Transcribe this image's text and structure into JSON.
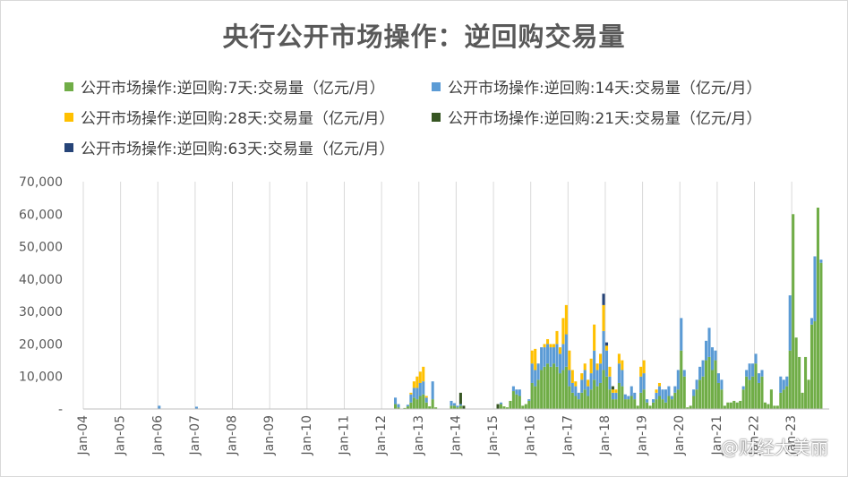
{
  "chart_data": {
    "type": "bar",
    "stacked": true,
    "title": "央行公开市场操作：逆回购交易量",
    "xlabel": "",
    "ylabel": "",
    "ylim": [
      0,
      70000
    ],
    "yticks": [
      0,
      10000,
      20000,
      30000,
      40000,
      50000,
      60000,
      70000
    ],
    "ytick_labels": [
      "-",
      "10,000",
      "20,000",
      "30,000",
      "40,000",
      "50,000",
      "60,000",
      "70,000"
    ],
    "xtick_labels": [
      "Jan-04",
      "Jan-05",
      "Jan-06",
      "Jan-07",
      "Jan-08",
      "Jan-09",
      "Jan-10",
      "Jan-11",
      "Jan-12",
      "Jan-13",
      "Jan-14",
      "Jan-15",
      "Jan-16",
      "Jan-17",
      "Jan-18",
      "Jan-19",
      "Jan-20",
      "Jan-21",
      "Jan-22",
      "Jan-23"
    ],
    "x_start": "2004-01",
    "grid": "vertical",
    "legend_position": "top",
    "series": [
      {
        "name": "公开市场操作:逆回购:7天:交易量（亿元/月）",
        "color": "#70ad47",
        "key": "d7"
      },
      {
        "name": "公开市场操作:逆回购:14天:交易量（亿元/月）",
        "color": "#5b9bd5",
        "key": "d14"
      },
      {
        "name": "公开市场操作:逆回购:28天:交易量（亿元/月）",
        "color": "#ffc000",
        "key": "d28"
      },
      {
        "name": "公开市场操作:逆回购:21天:交易量（亿元/月）",
        "color": "#375623",
        "key": "d21"
      },
      {
        "name": "公开市场操作:逆回购:63天:交易量（亿元/月）",
        "color": "#264478",
        "key": "d63"
      }
    ],
    "data": [
      {
        "x": "2006-01",
        "d7": 0,
        "d14": 1000,
        "d28": 0,
        "d21": 0,
        "d63": 0
      },
      {
        "x": "2007-01",
        "d7": 0,
        "d14": 700,
        "d28": 0,
        "d21": 0,
        "d63": 0
      },
      {
        "x": "2012-05",
        "d7": 1500,
        "d14": 2000,
        "d28": 0,
        "d21": 0,
        "d63": 0
      },
      {
        "x": "2012-06",
        "d7": 500,
        "d14": 1000,
        "d28": 0,
        "d21": 0,
        "d63": 0
      },
      {
        "x": "2012-07",
        "d7": 0,
        "d14": 0,
        "d28": 0,
        "d21": 0,
        "d63": 0
      },
      {
        "x": "2012-08",
        "d7": 300,
        "d14": 0,
        "d28": 0,
        "d21": 0,
        "d63": 0
      },
      {
        "x": "2012-09",
        "d7": 800,
        "d14": 500,
        "d28": 0,
        "d21": 0,
        "d63": 0
      },
      {
        "x": "2012-10",
        "d7": 2000,
        "d14": 2500,
        "d28": 500,
        "d21": 0,
        "d63": 0
      },
      {
        "x": "2012-11",
        "d7": 3500,
        "d14": 3000,
        "d28": 2000,
        "d21": 0,
        "d63": 0
      },
      {
        "x": "2012-12",
        "d7": 3000,
        "d14": 3500,
        "d28": 3500,
        "d21": 0,
        "d63": 0
      },
      {
        "x": "2013-01",
        "d7": 4000,
        "d14": 4000,
        "d28": 3500,
        "d21": 0,
        "d63": 0
      },
      {
        "x": "2013-02",
        "d7": 4500,
        "d14": 4000,
        "d28": 4500,
        "d21": 0,
        "d63": 0
      },
      {
        "x": "2013-03",
        "d7": 2000,
        "d14": 1500,
        "d28": 500,
        "d21": 0,
        "d63": 0
      },
      {
        "x": "2013-04",
        "d7": 800,
        "d14": 0,
        "d28": 0,
        "d21": 0,
        "d63": 0
      },
      {
        "x": "2013-05",
        "d7": 3000,
        "d14": 5500,
        "d28": 0,
        "d21": 0,
        "d63": 0
      },
      {
        "x": "2013-06",
        "d7": 500,
        "d14": 0,
        "d28": 0,
        "d21": 0,
        "d63": 0
      },
      {
        "x": "2013-11",
        "d7": 1000,
        "d14": 1500,
        "d28": 0,
        "d21": 0,
        "d63": 0
      },
      {
        "x": "2013-12",
        "d7": 1000,
        "d14": 800,
        "d28": 0,
        "d21": 0,
        "d63": 0
      },
      {
        "x": "2014-01",
        "d7": 500,
        "d14": 500,
        "d28": 0,
        "d21": 0,
        "d63": 0
      },
      {
        "x": "2014-02",
        "d7": 1000,
        "d14": 500,
        "d28": 0,
        "d21": 3500,
        "d63": 0
      },
      {
        "x": "2014-03",
        "d7": 0,
        "d14": 0,
        "d28": 0,
        "d21": 1000,
        "d63": 0
      },
      {
        "x": "2015-02",
        "d7": 0,
        "d14": 0,
        "d28": 0,
        "d21": 1500,
        "d63": 0
      },
      {
        "x": "2015-03",
        "d7": 1500,
        "d14": 500,
        "d28": 0,
        "d21": 0,
        "d63": 0
      },
      {
        "x": "2015-04",
        "d7": 800,
        "d14": 0,
        "d28": 0,
        "d21": 0,
        "d63": 0
      },
      {
        "x": "2015-05",
        "d7": 500,
        "d14": 0,
        "d28": 0,
        "d21": 0,
        "d63": 0
      },
      {
        "x": "2015-06",
        "d7": 2500,
        "d14": 0,
        "d28": 0,
        "d21": 0,
        "d63": 0
      },
      {
        "x": "2015-07",
        "d7": 5500,
        "d14": 1500,
        "d28": 0,
        "d21": 0,
        "d63": 0
      },
      {
        "x": "2015-08",
        "d7": 4500,
        "d14": 1500,
        "d28": 0,
        "d21": 0,
        "d63": 0
      },
      {
        "x": "2015-09",
        "d7": 4000,
        "d14": 2000,
        "d28": 0,
        "d21": 0,
        "d63": 0
      },
      {
        "x": "2015-10",
        "d7": 1000,
        "d14": 0,
        "d28": 0,
        "d21": 0,
        "d63": 0
      },
      {
        "x": "2015-11",
        "d7": 1500,
        "d14": 0,
        "d28": 0,
        "d21": 0,
        "d63": 0
      },
      {
        "x": "2015-12",
        "d7": 2500,
        "d14": 500,
        "d28": 0,
        "d21": 0,
        "d63": 0
      },
      {
        "x": "2016-01",
        "d7": 8000,
        "d14": 6000,
        "d28": 4000,
        "d21": 0,
        "d63": 0
      },
      {
        "x": "2016-02",
        "d7": 7000,
        "d14": 5000,
        "d28": 6500,
        "d21": 0,
        "d63": 0
      },
      {
        "x": "2016-03",
        "d7": 9000,
        "d14": 5000,
        "d28": 0,
        "d21": 0,
        "d63": 0
      },
      {
        "x": "2016-04",
        "d7": 12000,
        "d14": 7000,
        "d28": 0,
        "d21": 0,
        "d63": 0
      },
      {
        "x": "2016-05",
        "d7": 13000,
        "d14": 6000,
        "d28": 1000,
        "d21": 0,
        "d63": 0
      },
      {
        "x": "2016-06",
        "d7": 14000,
        "d14": 6000,
        "d28": 1500,
        "d21": 0,
        "d63": 0
      },
      {
        "x": "2016-07",
        "d7": 13000,
        "d14": 6000,
        "d28": 1000,
        "d21": 0,
        "d63": 0
      },
      {
        "x": "2016-08",
        "d7": 14000,
        "d14": 5000,
        "d28": 1000,
        "d21": 0,
        "d63": 0
      },
      {
        "x": "2016-09",
        "d7": 13000,
        "d14": 7000,
        "d28": 4000,
        "d21": 0,
        "d63": 0
      },
      {
        "x": "2016-10",
        "d7": 11000,
        "d14": 6000,
        "d28": 2000,
        "d21": 0,
        "d63": 0
      },
      {
        "x": "2016-11",
        "d7": 12000,
        "d14": 8000,
        "d28": 8000,
        "d21": 0,
        "d63": 0
      },
      {
        "x": "2016-12",
        "d7": 13000,
        "d14": 10000,
        "d28": 9000,
        "d21": 0,
        "d63": 0
      },
      {
        "x": "2017-01",
        "d7": 7000,
        "d14": 5000,
        "d28": 6000,
        "d21": 0,
        "d63": 0
      },
      {
        "x": "2017-02",
        "d7": 5000,
        "d14": 3000,
        "d28": 4000,
        "d21": 0,
        "d63": 0
      },
      {
        "x": "2017-03",
        "d7": 4000,
        "d14": 3000,
        "d28": 1500,
        "d21": 0,
        "d63": 0
      },
      {
        "x": "2017-04",
        "d7": 3000,
        "d14": 2000,
        "d28": 0,
        "d21": 0,
        "d63": 0
      },
      {
        "x": "2017-05",
        "d7": 5000,
        "d14": 4000,
        "d28": 2000,
        "d21": 0,
        "d63": 0
      },
      {
        "x": "2017-06",
        "d7": 6000,
        "d14": 6000,
        "d28": 2000,
        "d21": 0,
        "d63": 0
      },
      {
        "x": "2017-07",
        "d7": 4000,
        "d14": 3000,
        "d28": 2000,
        "d21": 0,
        "d63": 0
      },
      {
        "x": "2017-08",
        "d7": 6000,
        "d14": 5000,
        "d28": 4500,
        "d21": 0,
        "d63": 0
      },
      {
        "x": "2017-09",
        "d7": 9000,
        "d14": 9000,
        "d28": 8000,
        "d21": 0,
        "d63": 0
      },
      {
        "x": "2017-10",
        "d7": 7000,
        "d14": 5000,
        "d28": 2000,
        "d21": 0,
        "d63": 0
      },
      {
        "x": "2017-11",
        "d7": 8000,
        "d14": 6000,
        "d28": 3000,
        "d21": 0,
        "d63": 0
      },
      {
        "x": "2017-12",
        "d7": 12000,
        "d14": 12000,
        "d28": 8000,
        "d21": 0,
        "d63": 3500
      },
      {
        "x": "2018-01",
        "d7": 10000,
        "d14": 8000,
        "d28": 1500,
        "d21": 0,
        "d63": 1000
      },
      {
        "x": "2018-02",
        "d7": 6000,
        "d14": 4000,
        "d28": 3000,
        "d21": 0,
        "d63": 0
      },
      {
        "x": "2018-03",
        "d7": 3000,
        "d14": 2000,
        "d28": 1000,
        "d21": 1000,
        "d63": 0
      },
      {
        "x": "2018-04",
        "d7": 3000,
        "d14": 2000,
        "d28": 1000,
        "d21": 0,
        "d63": 0
      },
      {
        "x": "2018-05",
        "d7": 8000,
        "d14": 6000,
        "d28": 3000,
        "d21": 0,
        "d63": 0
      },
      {
        "x": "2018-06",
        "d7": 7000,
        "d14": 5000,
        "d28": 3000,
        "d21": 0,
        "d63": 0
      },
      {
        "x": "2018-07",
        "d7": 3000,
        "d14": 1500,
        "d28": 0,
        "d21": 0,
        "d63": 0
      },
      {
        "x": "2018-08",
        "d7": 3000,
        "d14": 1000,
        "d28": 0,
        "d21": 0,
        "d63": 0
      },
      {
        "x": "2018-09",
        "d7": 4000,
        "d14": 3000,
        "d28": 0,
        "d21": 0,
        "d63": 0
      },
      {
        "x": "2018-10",
        "d7": 3000,
        "d14": 2000,
        "d28": 0,
        "d21": 0,
        "d63": 0
      },
      {
        "x": "2018-11",
        "d7": 1000,
        "d14": 0,
        "d28": 0,
        "d21": 0,
        "d63": 0
      },
      {
        "x": "2018-12",
        "d7": 5000,
        "d14": 5000,
        "d28": 3000,
        "d21": 0,
        "d63": 0
      },
      {
        "x": "2019-01",
        "d7": 6000,
        "d14": 5000,
        "d28": 4000,
        "d21": 0,
        "d63": 0
      },
      {
        "x": "2019-02",
        "d7": 2000,
        "d14": 1000,
        "d28": 0,
        "d21": 0,
        "d63": 0
      },
      {
        "x": "2019-03",
        "d7": 1000,
        "d14": 0,
        "d28": 0,
        "d21": 0,
        "d63": 0
      },
      {
        "x": "2019-04",
        "d7": 2000,
        "d14": 1000,
        "d28": 0,
        "d21": 0,
        "d63": 0
      },
      {
        "x": "2019-05",
        "d7": 3000,
        "d14": 2000,
        "d28": 1000,
        "d21": 0,
        "d63": 0
      },
      {
        "x": "2019-06",
        "d7": 4000,
        "d14": 3000,
        "d28": 1000,
        "d21": 0,
        "d63": 0
      },
      {
        "x": "2019-07",
        "d7": 3000,
        "d14": 3000,
        "d28": 0,
        "d21": 0,
        "d63": 0
      },
      {
        "x": "2019-08",
        "d7": 2000,
        "d14": 4000,
        "d28": 0,
        "d21": 0,
        "d63": 0
      },
      {
        "x": "2019-09",
        "d7": 4000,
        "d14": 3000,
        "d28": 0,
        "d21": 0,
        "d63": 0
      },
      {
        "x": "2019-10",
        "d7": 3000,
        "d14": 1000,
        "d28": 0,
        "d21": 0,
        "d63": 0
      },
      {
        "x": "2019-11",
        "d7": 5000,
        "d14": 2000,
        "d28": 0,
        "d21": 0,
        "d63": 0
      },
      {
        "x": "2019-12",
        "d7": 6000,
        "d14": 6000,
        "d28": 0,
        "d21": 0,
        "d63": 0
      },
      {
        "x": "2020-01",
        "d7": 18000,
        "d14": 10000,
        "d28": 0,
        "d21": 0,
        "d63": 0
      },
      {
        "x": "2020-02",
        "d7": 10000,
        "d14": 2000,
        "d28": 0,
        "d21": 0,
        "d63": 0
      },
      {
        "x": "2020-03",
        "d7": 500,
        "d14": 0,
        "d28": 0,
        "d21": 0,
        "d63": 0
      },
      {
        "x": "2020-04",
        "d7": 1000,
        "d14": 0,
        "d28": 0,
        "d21": 0,
        "d63": 0
      },
      {
        "x": "2020-05",
        "d7": 4000,
        "d14": 2000,
        "d28": 0,
        "d21": 0,
        "d63": 0
      },
      {
        "x": "2020-06",
        "d7": 6000,
        "d14": 3000,
        "d28": 0,
        "d21": 0,
        "d63": 0
      },
      {
        "x": "2020-07",
        "d7": 9000,
        "d14": 4000,
        "d28": 0,
        "d21": 0,
        "d63": 0
      },
      {
        "x": "2020-08",
        "d7": 10000,
        "d14": 5000,
        "d28": 0,
        "d21": 0,
        "d63": 0
      },
      {
        "x": "2020-09",
        "d7": 15000,
        "d14": 6000,
        "d28": 0,
        "d21": 0,
        "d63": 0
      },
      {
        "x": "2020-10",
        "d7": 16000,
        "d14": 9000,
        "d28": 0,
        "d21": 0,
        "d63": 0
      },
      {
        "x": "2020-11",
        "d7": 12000,
        "d14": 7000,
        "d28": 0,
        "d21": 0,
        "d63": 0
      },
      {
        "x": "2020-12",
        "d7": 15000,
        "d14": 3000,
        "d28": 0,
        "d21": 0,
        "d63": 0
      },
      {
        "x": "2021-01",
        "d7": 8000,
        "d14": 3000,
        "d28": 0,
        "d21": 0,
        "d63": 0
      },
      {
        "x": "2021-02",
        "d7": 6000,
        "d14": 3000,
        "d28": 0,
        "d21": 0,
        "d63": 0
      },
      {
        "x": "2021-03",
        "d7": 1000,
        "d14": 0,
        "d28": 0,
        "d21": 0,
        "d63": 0
      },
      {
        "x": "2021-04",
        "d7": 2000,
        "d14": 0,
        "d28": 0,
        "d21": 0,
        "d63": 0
      },
      {
        "x": "2021-05",
        "d7": 2000,
        "d14": 0,
        "d28": 0,
        "d21": 0,
        "d63": 0
      },
      {
        "x": "2021-06",
        "d7": 2500,
        "d14": 0,
        "d28": 0,
        "d21": 0,
        "d63": 0
      },
      {
        "x": "2021-07",
        "d7": 2000,
        "d14": 0,
        "d28": 0,
        "d21": 0,
        "d63": 0
      },
      {
        "x": "2021-08",
        "d7": 2500,
        "d14": 0,
        "d28": 0,
        "d21": 0,
        "d63": 0
      },
      {
        "x": "2021-09",
        "d7": 6000,
        "d14": 1000,
        "d28": 0,
        "d21": 0,
        "d63": 0
      },
      {
        "x": "2021-10",
        "d7": 10000,
        "d14": 2000,
        "d28": 0,
        "d21": 0,
        "d63": 0
      },
      {
        "x": "2021-11",
        "d7": 9000,
        "d14": 5000,
        "d28": 0,
        "d21": 0,
        "d63": 0
      },
      {
        "x": "2021-12",
        "d7": 10000,
        "d14": 4000,
        "d28": 0,
        "d21": 0,
        "d63": 0
      },
      {
        "x": "2022-01",
        "d7": 14000,
        "d14": 3000,
        "d28": 0,
        "d21": 0,
        "d63": 0
      },
      {
        "x": "2022-02",
        "d7": 8000,
        "d14": 3000,
        "d28": 0,
        "d21": 0,
        "d63": 0
      },
      {
        "x": "2022-03",
        "d7": 10000,
        "d14": 2000,
        "d28": 0,
        "d21": 0,
        "d63": 0
      },
      {
        "x": "2022-04",
        "d7": 2000,
        "d14": 0,
        "d28": 0,
        "d21": 0,
        "d63": 0
      },
      {
        "x": "2022-05",
        "d7": 1500,
        "d14": 0,
        "d28": 0,
        "d21": 0,
        "d63": 0
      },
      {
        "x": "2022-06",
        "d7": 6000,
        "d14": 0,
        "d28": 0,
        "d21": 0,
        "d63": 0
      },
      {
        "x": "2022-07",
        "d7": 1000,
        "d14": 0,
        "d28": 0,
        "d21": 0,
        "d63": 0
      },
      {
        "x": "2022-08",
        "d7": 1000,
        "d14": 0,
        "d28": 0,
        "d21": 0,
        "d63": 0
      },
      {
        "x": "2022-09",
        "d7": 5000,
        "d14": 5000,
        "d28": 0,
        "d21": 0,
        "d63": 0
      },
      {
        "x": "2022-10",
        "d7": 6000,
        "d14": 3000,
        "d28": 0,
        "d21": 0,
        "d63": 0
      },
      {
        "x": "2022-11",
        "d7": 7000,
        "d14": 3000,
        "d28": 0,
        "d21": 0,
        "d63": 0
      },
      {
        "x": "2022-12",
        "d7": 18000,
        "d14": 17000,
        "d28": 0,
        "d21": 0,
        "d63": 0
      },
      {
        "x": "2023-01",
        "d7": 60000,
        "d14": 0,
        "d28": 0,
        "d21": 0,
        "d63": 0
      },
      {
        "x": "2023-02",
        "d7": 22000,
        "d14": 0,
        "d28": 0,
        "d21": 0,
        "d63": 0
      },
      {
        "x": "2023-03",
        "d7": 16000,
        "d14": 0,
        "d28": 0,
        "d21": 0,
        "d63": 0
      },
      {
        "x": "2023-04",
        "d7": 5000,
        "d14": 0,
        "d28": 0,
        "d21": 0,
        "d63": 0
      },
      {
        "x": "2023-05",
        "d7": 16000,
        "d14": 0,
        "d28": 0,
        "d21": 0,
        "d63": 0
      },
      {
        "x": "2023-06",
        "d7": 9000,
        "d14": 0,
        "d28": 0,
        "d21": 0,
        "d63": 0
      },
      {
        "x": "2023-07",
        "d7": 26000,
        "d14": 2000,
        "d28": 0,
        "d21": 0,
        "d63": 0
      },
      {
        "x": "2023-08",
        "d7": 27000,
        "d14": 20000,
        "d28": 0,
        "d21": 0,
        "d63": 0
      },
      {
        "x": "2023-09",
        "d7": 62000,
        "d14": 0,
        "d28": 0,
        "d21": 0,
        "d63": 0
      },
      {
        "x": "2023-10",
        "d7": 45000,
        "d14": 1000,
        "d28": 0,
        "d21": 0,
        "d63": 0
      }
    ]
  },
  "watermark": "@财经大美丽"
}
